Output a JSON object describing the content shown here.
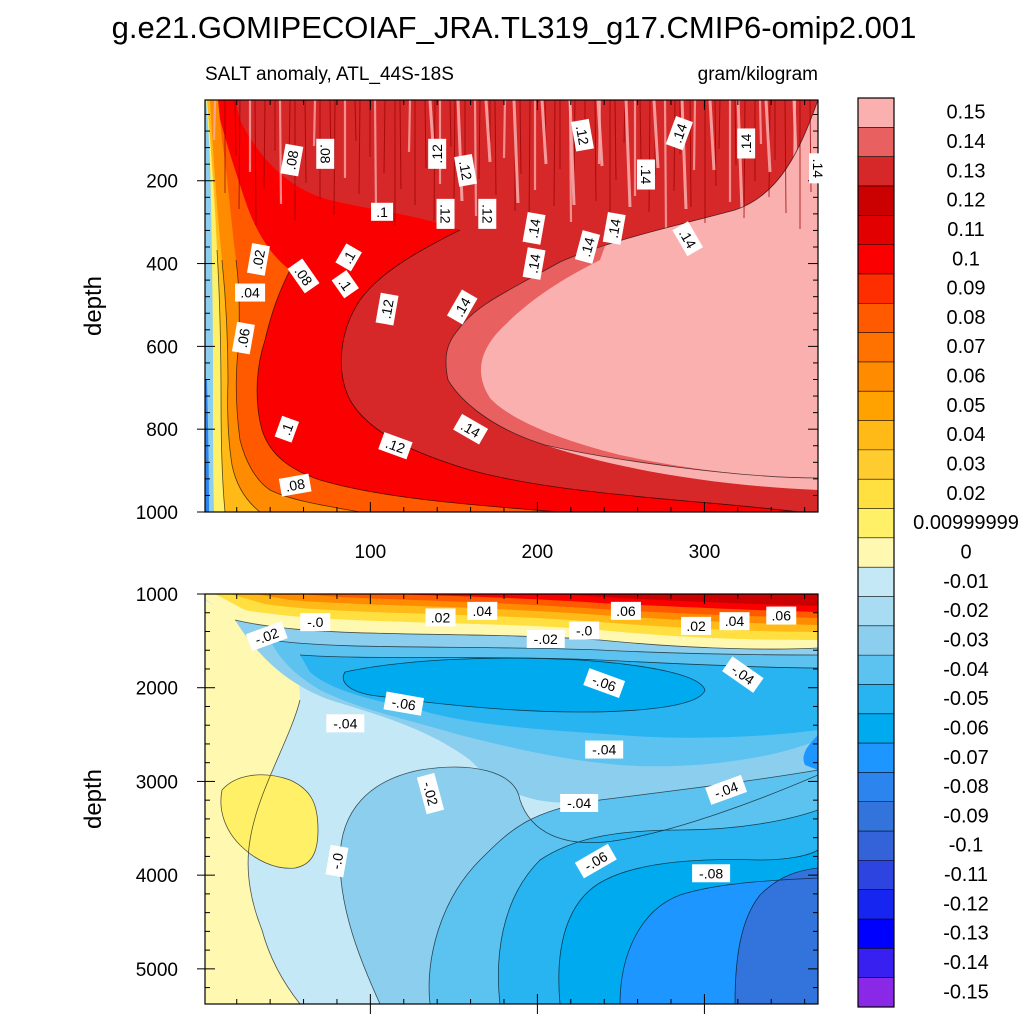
{
  "chart_data": [
    {
      "type": "heatmap",
      "panel": "upper",
      "title": "g.e21.GOMIPECOIAF_JRA.TL319_g17.CMIP6-omip2.001",
      "left_subtitle": "SALT anomaly, ATL_44S-18S",
      "right_subtitle": "gram/kilogram",
      "xlabel": "",
      "ylabel": "depth",
      "xlim": [
        1,
        368
      ],
      "ylim": [
        1000,
        5
      ],
      "x_ticks": [
        "100",
        "200",
        "300"
      ],
      "x_tick_values": [
        100,
        200,
        300
      ],
      "y_ticks": [
        "200",
        "400",
        "600",
        "800",
        "1000"
      ],
      "y_tick_values": [
        200,
        400,
        600,
        800,
        1000
      ],
      "contour_labels": [
        {
          "text": ".08",
          "x": 53,
          "y": 150,
          "angle": -80
        },
        {
          "text": ".08",
          "x": 73,
          "y": 135,
          "angle": 90
        },
        {
          "text": ".12",
          "x": 140,
          "y": 135,
          "angle": -90
        },
        {
          "text": ".12",
          "x": 157,
          "y": 175,
          "angle": 80
        },
        {
          "text": ".12",
          "x": 227,
          "y": 90,
          "angle": 80
        },
        {
          "text": ".14",
          "x": 285,
          "y": 85,
          "angle": -70
        },
        {
          "text": ".14",
          "x": 325,
          "y": 110,
          "angle": -90
        },
        {
          "text": ".14",
          "x": 368,
          "y": 170,
          "angle": 90
        },
        {
          "text": ".14",
          "x": 265,
          "y": 185,
          "angle": 90
        },
        {
          "text": ".1",
          "x": 107,
          "y": 275,
          "angle": 0
        },
        {
          "text": ".12",
          "x": 145,
          "y": 280,
          "angle": 90
        },
        {
          "text": ".12",
          "x": 170,
          "y": 280,
          "angle": 90
        },
        {
          "text": ".14",
          "x": 198,
          "y": 315,
          "angle": -80
        },
        {
          "text": ".14",
          "x": 246,
          "y": 315,
          "angle": -80
        },
        {
          "text": ".14",
          "x": 230,
          "y": 360,
          "angle": -75
        },
        {
          "text": ".14",
          "x": 290,
          "y": 340,
          "angle": 60
        },
        {
          "text": ".14",
          "x": 198,
          "y": 400,
          "angle": -80
        },
        {
          "text": ".02",
          "x": 33,
          "y": 390,
          "angle": -80
        },
        {
          "text": ".1",
          "x": 87,
          "y": 385,
          "angle": -60
        },
        {
          "text": ".08",
          "x": 60,
          "y": 430,
          "angle": 55
        },
        {
          "text": ".1",
          "x": 85,
          "y": 450,
          "angle": 55
        },
        {
          "text": ".04",
          "x": 28,
          "y": 470,
          "angle": 0
        },
        {
          "text": ".12",
          "x": 110,
          "y": 510,
          "angle": -80
        },
        {
          "text": ".14",
          "x": 155,
          "y": 505,
          "angle": -60
        },
        {
          "text": ".06",
          "x": 24,
          "y": 580,
          "angle": -80
        },
        {
          "text": ".1",
          "x": 50,
          "y": 800,
          "angle": -70
        },
        {
          "text": ".12",
          "x": 115,
          "y": 840,
          "angle": 20
        },
        {
          "text": ".14",
          "x": 160,
          "y": 800,
          "angle": 30
        },
        {
          "text": ".08",
          "x": 55,
          "y": 935,
          "angle": -10
        }
      ]
    },
    {
      "type": "heatmap",
      "panel": "lower",
      "xlabel": "",
      "ylabel": "depth",
      "xlim": [
        1,
        368
      ],
      "ylim": [
        5375,
        1000
      ],
      "x_ticks": [],
      "y_ticks": [
        "1000",
        "2000",
        "3000",
        "4000",
        "5000"
      ],
      "y_tick_values": [
        1000,
        2000,
        3000,
        4000,
        5000
      ],
      "contour_labels": [
        {
          "text": "-.0",
          "x": 67,
          "y": 1300,
          "angle": 0
        },
        {
          "text": "-.02",
          "x": 38,
          "y": 1450,
          "angle": -20
        },
        {
          "text": ".02",
          "x": 142,
          "y": 1250,
          "angle": 0
        },
        {
          "text": ".04",
          "x": 167,
          "y": 1180,
          "angle": 0
        },
        {
          "text": "-.02",
          "x": 205,
          "y": 1480,
          "angle": 0
        },
        {
          "text": "-.0",
          "x": 228,
          "y": 1390,
          "angle": 0
        },
        {
          "text": ".06",
          "x": 253,
          "y": 1180,
          "angle": 0
        },
        {
          "text": ".02",
          "x": 295,
          "y": 1340,
          "angle": 0
        },
        {
          "text": ".04",
          "x": 318,
          "y": 1290,
          "angle": 0
        },
        {
          "text": ".06",
          "x": 346,
          "y": 1230,
          "angle": 0
        },
        {
          "text": "-.06",
          "x": 120,
          "y": 2170,
          "angle": 10
        },
        {
          "text": "-.06",
          "x": 240,
          "y": 1950,
          "angle": 20
        },
        {
          "text": "-.04",
          "x": 323,
          "y": 1860,
          "angle": 35
        },
        {
          "text": "-.04",
          "x": 85,
          "y": 2380,
          "angle": 0
        },
        {
          "text": "-.04",
          "x": 240,
          "y": 2660,
          "angle": 0
        },
        {
          "text": "-.02",
          "x": 136,
          "y": 3130,
          "angle": 75
        },
        {
          "text": "-.04",
          "x": 225,
          "y": 3230,
          "angle": 0
        },
        {
          "text": "-.04",
          "x": 313,
          "y": 3090,
          "angle": -20
        },
        {
          "text": "-.0",
          "x": 80,
          "y": 3850,
          "angle": -80
        },
        {
          "text": "-.06",
          "x": 235,
          "y": 3850,
          "angle": -30
        },
        {
          "text": "-.08",
          "x": 304,
          "y": 3980,
          "angle": 0
        }
      ]
    }
  ],
  "colorbar": {
    "labels": [
      "0.15",
      "0.14",
      "0.13",
      "0.12",
      "0.11",
      "0.1",
      "0.09",
      "0.08",
      "0.07",
      "0.06",
      "0.05",
      "0.04",
      "0.03",
      "0.02",
      "0.00999999",
      "0",
      "-0.01",
      "-0.02",
      "-0.03",
      "-0.04",
      "-0.05",
      "-0.06",
      "-0.07",
      "-0.08",
      "-0.09",
      "-0.1",
      "-0.11",
      "-0.12",
      "-0.13",
      "-0.14",
      "-0.15"
    ],
    "colors": [
      "#FBB0B0",
      "#E86060",
      "#D62828",
      "#CB0000",
      "#E30000",
      "#FB0000",
      "#FF2E00",
      "#FF5A00",
      "#FF7200",
      "#FF8C00",
      "#FFA200",
      "#FFBA18",
      "#FFCC30",
      "#FFE040",
      "#FFF068",
      "#FFF8B0",
      "#C4E8F6",
      "#A8DCF2",
      "#8CCEEE",
      "#5CC2F0",
      "#28B4F0",
      "#00AAEE",
      "#1E96FF",
      "#2C84EE",
      "#3274DC",
      "#3462D8",
      "#2E44E0",
      "#1626F0",
      "#0000FF",
      "#3820F0",
      "#8A28E8"
    ]
  },
  "colors": {
    "upper_regions": [
      "#8CCEEE",
      "#FFF068",
      "#FFBA18",
      "#FF8C00",
      "#FF5A00",
      "#FB0000",
      "#D62828",
      "#E86060",
      "#FBB0B0"
    ],
    "lower_regions": [
      "#FFF068",
      "#FFF8B0",
      "#C4E8F6",
      "#8CCEEE",
      "#5CC2F0",
      "#28B4F0",
      "#00AAEE",
      "#1E96FF",
      "#3274DC"
    ],
    "lower_top_band": [
      "#C4E8F6",
      "#FFF8B0",
      "#FFE040",
      "#FFBA18",
      "#FF8C00",
      "#FF5A00",
      "#FB0000",
      "#CB0000"
    ]
  }
}
